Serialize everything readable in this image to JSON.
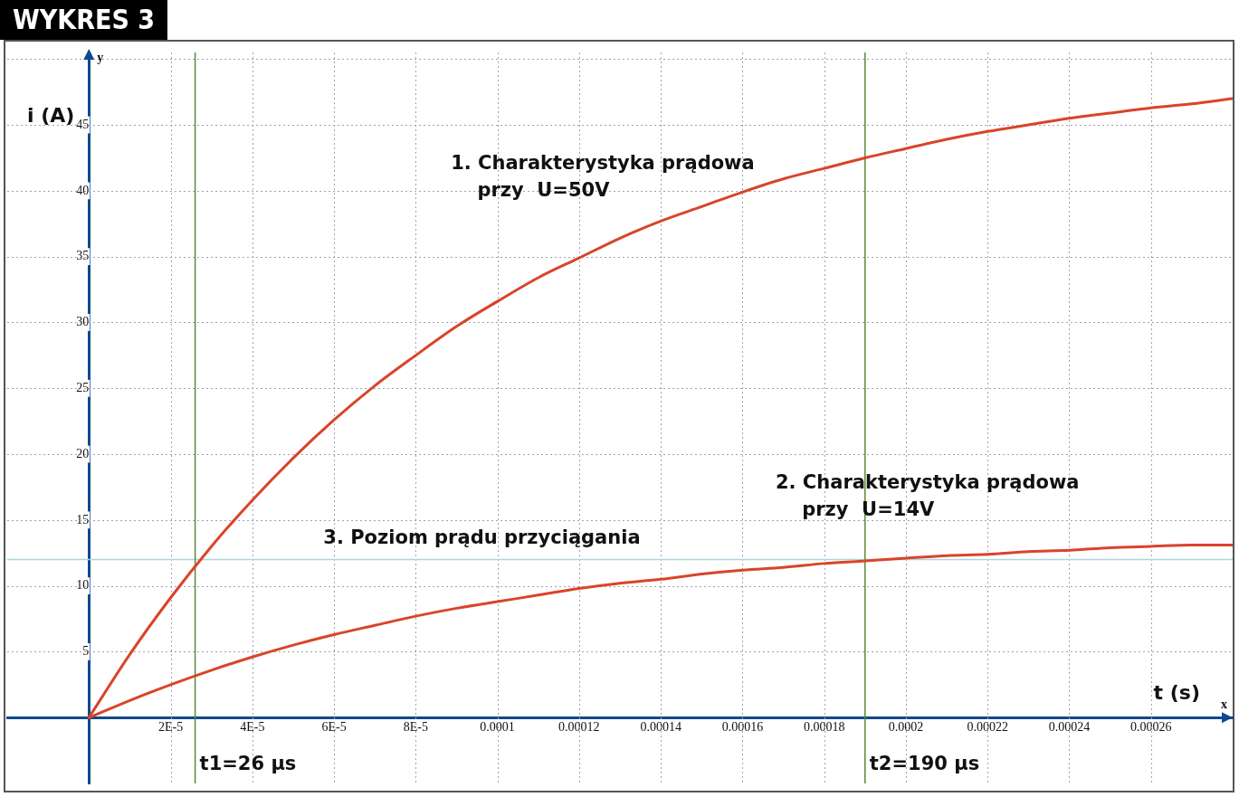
{
  "chart_data": {
    "type": "line",
    "title": "WYKRES 3",
    "xlabel": "t (s)",
    "ylabel": "i (A)",
    "x": [
      0,
      1e-05,
      2e-05,
      3e-05,
      4e-05,
      5e-05,
      6e-05,
      7e-05,
      8e-05,
      9e-05,
      0.0001,
      0.00011,
      0.00012,
      0.00013,
      0.00014,
      0.00015,
      0.00016,
      0.00017,
      0.00018,
      0.00019,
      0.0002,
      0.00021,
      0.00022,
      0.00023,
      0.00024,
      0.00025,
      0.00026,
      0.00027,
      0.00028
    ],
    "series": [
      {
        "name": "1. Charakterystyka prądowa\n    przy  U=50V",
        "color": "#d9442a",
        "values": [
          0,
          4.8,
          9.1,
          13.0,
          16.5,
          19.7,
          22.6,
          25.2,
          27.5,
          29.7,
          31.6,
          33.4,
          34.9,
          36.4,
          37.7,
          38.8,
          39.9,
          40.9,
          41.7,
          42.5,
          43.2,
          43.9,
          44.5,
          45.0,
          45.5,
          45.9,
          46.3,
          46.6,
          47.0
        ]
      },
      {
        "name": "2. Charakterystyka prądowa\n    przy  U=14V",
        "color": "#d9442a",
        "values": [
          0,
          1.3,
          2.5,
          3.6,
          4.6,
          5.5,
          6.3,
          7.0,
          7.7,
          8.3,
          8.8,
          9.3,
          9.8,
          10.2,
          10.5,
          10.9,
          11.2,
          11.4,
          11.7,
          11.9,
          12.1,
          12.3,
          12.4,
          12.6,
          12.7,
          12.9,
          13.0,
          13.1,
          13.1
        ]
      }
    ],
    "xlim": [
      -2e-05,
      0.00028
    ],
    "ylim": [
      -5,
      50.5
    ],
    "xticks": [
      {
        "value": 2e-05,
        "label": "2E-5"
      },
      {
        "value": 4e-05,
        "label": "4E-5"
      },
      {
        "value": 6e-05,
        "label": "6E-5"
      },
      {
        "value": 8e-05,
        "label": "8E-5"
      },
      0.0001,
      0.00012,
      0.00014,
      0.00016,
      0.00018,
      0.0002,
      0.00022,
      0.00024,
      0.00026
    ],
    "yticks": [
      5,
      10,
      15,
      20,
      25,
      30,
      35,
      40,
      45,
      {
        "value": 50,
        "label": null
      }
    ],
    "ref_lines": [
      {
        "axis": "y",
        "value": 12,
        "label": "3. Poziom prądu przyciągania",
        "color": "#a8d8dc"
      },
      {
        "axis": "x",
        "value": 2.6e-05,
        "label": "t1=26 µs",
        "color": "#5a8a3a"
      },
      {
        "axis": "x",
        "value": 0.00019,
        "label": "t2=190 µs",
        "color": "#5a8a3a"
      }
    ],
    "annotations": [
      "x",
      "y"
    ],
    "grid": true,
    "legend": false,
    "marker": "none",
    "line_style": "solid"
  }
}
